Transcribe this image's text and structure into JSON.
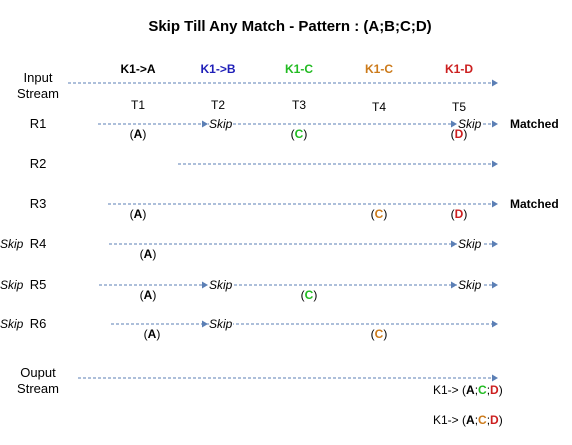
{
  "title": "Skip Till Any Match - Pattern : (A;B;C;D)",
  "input_label": [
    "Input",
    "Stream"
  ],
  "output_label": [
    "Ouput",
    "Stream"
  ],
  "headers": [
    {
      "text": "K1->A",
      "color": "#000000"
    },
    {
      "text": "K1->B",
      "color": "#1f1fb8"
    },
    {
      "text": "K1-C",
      "color": "#22bb22"
    },
    {
      "text": "K1-C",
      "color": "#cc7a1a"
    },
    {
      "text": "K1-D",
      "color": "#cc1f1f"
    }
  ],
  "times": [
    "T1",
    "T2",
    "T3",
    "T4",
    "T5"
  ],
  "colors": {
    "A": "#000000",
    "B": "#1f1fb8",
    "C_green": "#22bb22",
    "C_orange": "#cc7a1a",
    "D": "#cc1f1f"
  },
  "runs": [
    {
      "name": "R1",
      "matched": "Matched",
      "events": [
        {
          "col": 0,
          "letter": "A",
          "color": "#000000"
        },
        {
          "col": 2,
          "letter": "C",
          "color": "#22bb22"
        },
        {
          "col": 4,
          "letter": "D",
          "color": "#cc1f1f"
        }
      ],
      "skips": [
        "Skip",
        "",
        "Skip",
        ""
      ]
    },
    {
      "name": "R2",
      "matched": "",
      "events": [],
      "skips": []
    },
    {
      "name": "R3",
      "matched": "Matched",
      "events": [
        {
          "col": 0,
          "letter": "A",
          "color": "#000000"
        },
        {
          "col": 3,
          "letter": "C",
          "color": "#cc7a1a"
        },
        {
          "col": 4,
          "letter": "D",
          "color": "#cc1f1f"
        }
      ],
      "skips": []
    },
    {
      "name": "R4",
      "matched": "",
      "events": [
        {
          "col": 0,
          "letter": "A",
          "color": "#000000"
        }
      ],
      "skips": [
        "",
        "",
        "Skip",
        "Skip"
      ]
    },
    {
      "name": "R5",
      "matched": "",
      "events": [
        {
          "col": 0,
          "letter": "A",
          "color": "#000000"
        },
        {
          "col": 2,
          "letter": "C",
          "color": "#22bb22"
        }
      ],
      "skips": [
        "Skip",
        "",
        "Skip",
        "Skip"
      ]
    },
    {
      "name": "R6",
      "matched": "",
      "events": [
        {
          "col": 0,
          "letter": "A",
          "color": "#000000"
        },
        {
          "col": 3,
          "letter": "C",
          "color": "#cc7a1a"
        }
      ],
      "skips": [
        "Skip",
        "",
        "",
        "Skip"
      ]
    }
  ],
  "outputs": [
    {
      "prefix": "K1-> (",
      "suffix": ")",
      "parts": [
        {
          "letter": "A",
          "color": "#000000"
        },
        {
          "letter": "C",
          "color": "#22bb22"
        },
        {
          "letter": "D",
          "color": "#cc1f1f"
        }
      ]
    },
    {
      "prefix": "K1-> (",
      "suffix": ")",
      "parts": [
        {
          "letter": "A",
          "color": "#000000"
        },
        {
          "letter": "C",
          "color": "#cc7a1a"
        },
        {
          "letter": "D",
          "color": "#cc1f1f"
        }
      ]
    }
  ]
}
